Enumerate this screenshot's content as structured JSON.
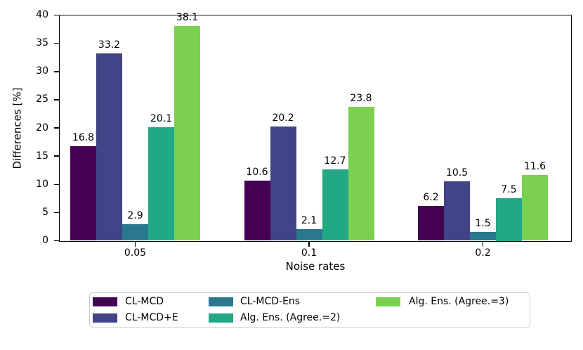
{
  "chart_data": {
    "type": "bar",
    "title": "",
    "xlabel": "Noise rates",
    "ylabel": "Differences [%]",
    "categories": [
      "0.05",
      "0.1",
      "0.2"
    ],
    "series": [
      {
        "name": "CL-MCD",
        "color": "#440154",
        "values": [
          16.8,
          10.6,
          6.2
        ]
      },
      {
        "name": "CL-MCD+E",
        "color": "#414487",
        "values": [
          33.2,
          20.2,
          10.5
        ]
      },
      {
        "name": "CL-MCD-Ens",
        "color": "#2a788e",
        "values": [
          2.9,
          2.1,
          1.5
        ]
      },
      {
        "name": "Alg. Ens. (Agree.=2)",
        "color": "#22a884",
        "values": [
          20.1,
          12.7,
          7.5
        ]
      },
      {
        "name": "Alg. Ens. (Agree.=3)",
        "color": "#7ad151",
        "values": [
          38.1,
          23.8,
          11.6
        ]
      }
    ],
    "ylim": [
      0,
      40
    ],
    "yticks": [
      0,
      5,
      10,
      15,
      20,
      25,
      30,
      35,
      40
    ],
    "bar_value_labels": true,
    "grid": "off",
    "legend": {
      "position": "below-plot",
      "columns": 3,
      "column_assignment": [
        [
          0,
          1
        ],
        [
          2,
          3
        ],
        [
          4
        ]
      ],
      "border_color": "#cccccc",
      "background": "#ffffff"
    },
    "colors": {
      "axis": "#000000",
      "text": "#000000",
      "plot_background": "#ffffff"
    }
  }
}
